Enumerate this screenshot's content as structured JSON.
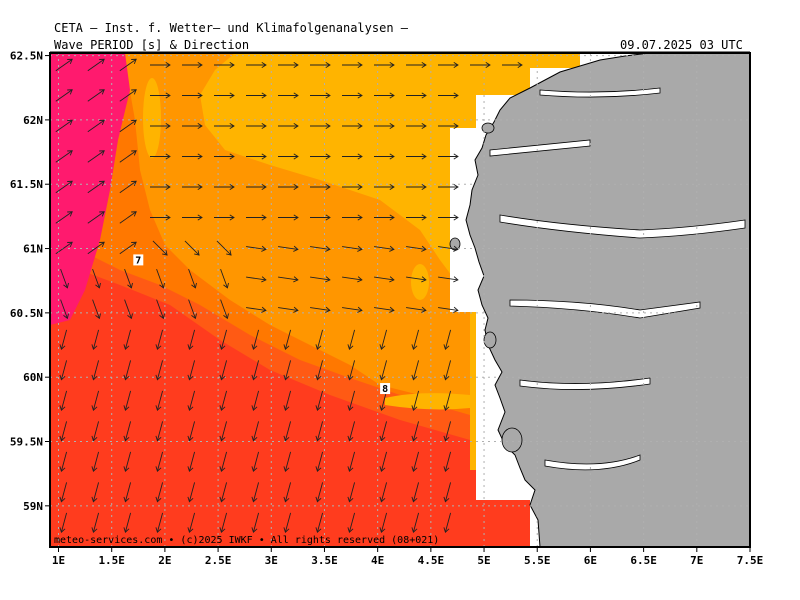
{
  "header": {
    "source": "CETA — Inst. f. Wetter— und Klimafolgenanalysen —",
    "parameter": "Wave_PERIOD_[s]_&_Direction",
    "datetime": "09.07.2025 03 UTC"
  },
  "footer": {
    "copyright": "meteo-services.com • (c)2025 IWKF • All rights reserved (08+021)"
  },
  "map": {
    "lon_labels": [
      "1E",
      "1.5E",
      "2E",
      "2.5E",
      "3E",
      "3.5E",
      "4E",
      "4.5E",
      "5E",
      "5.5E",
      "6E",
      "6.5E",
      "7E",
      "7.5E"
    ],
    "lat_labels": [
      "62.5N",
      "62N",
      "61.5N",
      "61N",
      "60.5N",
      "60N",
      "59.5N",
      "59N"
    ],
    "contour_labels": [
      {
        "text": "7",
        "lon": 1.75,
        "lat": 60.9
      },
      {
        "text": "8",
        "lon": 4.07,
        "lat": 59.9
      }
    ],
    "colors": {
      "magenta": "#ff1a6e",
      "red": "#ff3c1e",
      "red_orange": "#ff5a14",
      "dark_orange": "#ff7800",
      "orange": "#ff9600",
      "amber": "#ffb400",
      "land": "#a9a9a9",
      "missing": "#ffffff"
    }
  }
}
